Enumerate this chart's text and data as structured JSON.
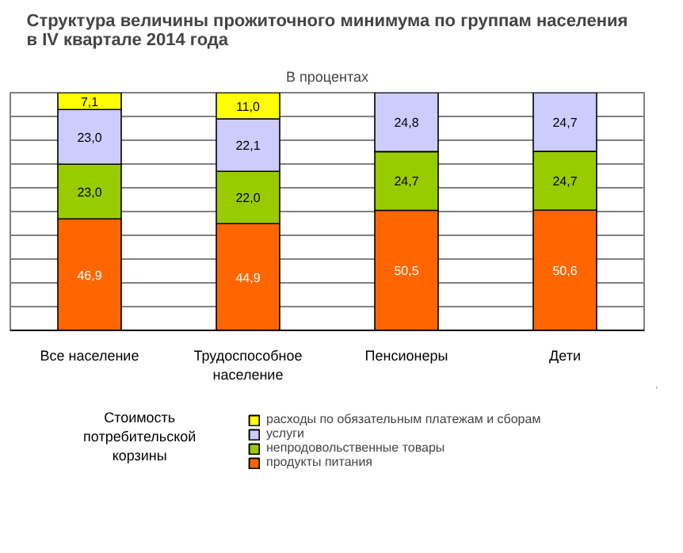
{
  "chart_data": {
    "type": "bar",
    "stacked": true,
    "title": "Структура величины прожиточного минимума по группам населения в IV квартале 2014 года",
    "subtitle": "В процентах",
    "categories": [
      "Все население",
      "Трудоспособное население",
      "Пенсионеры",
      "Дети"
    ],
    "series": [
      {
        "name": "продукты питания",
        "color": "#ff6600",
        "values": [
          46.9,
          44.9,
          50.5,
          50.6
        ],
        "value_labels": [
          "46,9",
          "44,9",
          "50,5",
          "50,6"
        ]
      },
      {
        "name": "непродовольственные товары",
        "color": "#99cc00",
        "values": [
          23.0,
          22.0,
          24.7,
          24.7
        ],
        "value_labels": [
          "23,0",
          "22,0",
          "24,7",
          "24,7"
        ]
      },
      {
        "name": "услуги",
        "color": "#ccccff",
        "values": [
          23.0,
          22.1,
          24.8,
          24.7
        ],
        "value_labels": [
          "23,0",
          "22,1",
          "24,8",
          "24,7"
        ]
      },
      {
        "name": "расходы по обязательным платежам и сборам",
        "color": "#ffff00",
        "values": [
          7.1,
          11.0,
          null,
          null
        ],
        "value_labels": [
          "7,1",
          "11,0",
          null,
          null
        ]
      }
    ],
    "legend_title": "Стоимость потребительской корзины",
    "ylim": [
      0,
      100
    ],
    "yticks": [
      {
        "value": 0,
        "label": null
      },
      {
        "value": 10,
        "label": null
      },
      {
        "value": 20,
        "label": null
      },
      {
        "value": 30,
        "label": null
      },
      {
        "value": 40,
        "label": null
      },
      {
        "value": 50,
        "label": null
      },
      {
        "value": 60,
        "label": null
      },
      {
        "value": 70,
        "label": null
      },
      {
        "value": 80,
        "label": null
      },
      {
        "value": 90,
        "label": null
      },
      {
        "value": 100,
        "label": null
      }
    ],
    "grid": "y",
    "legend": "bottom",
    "tick_labels": "x"
  }
}
